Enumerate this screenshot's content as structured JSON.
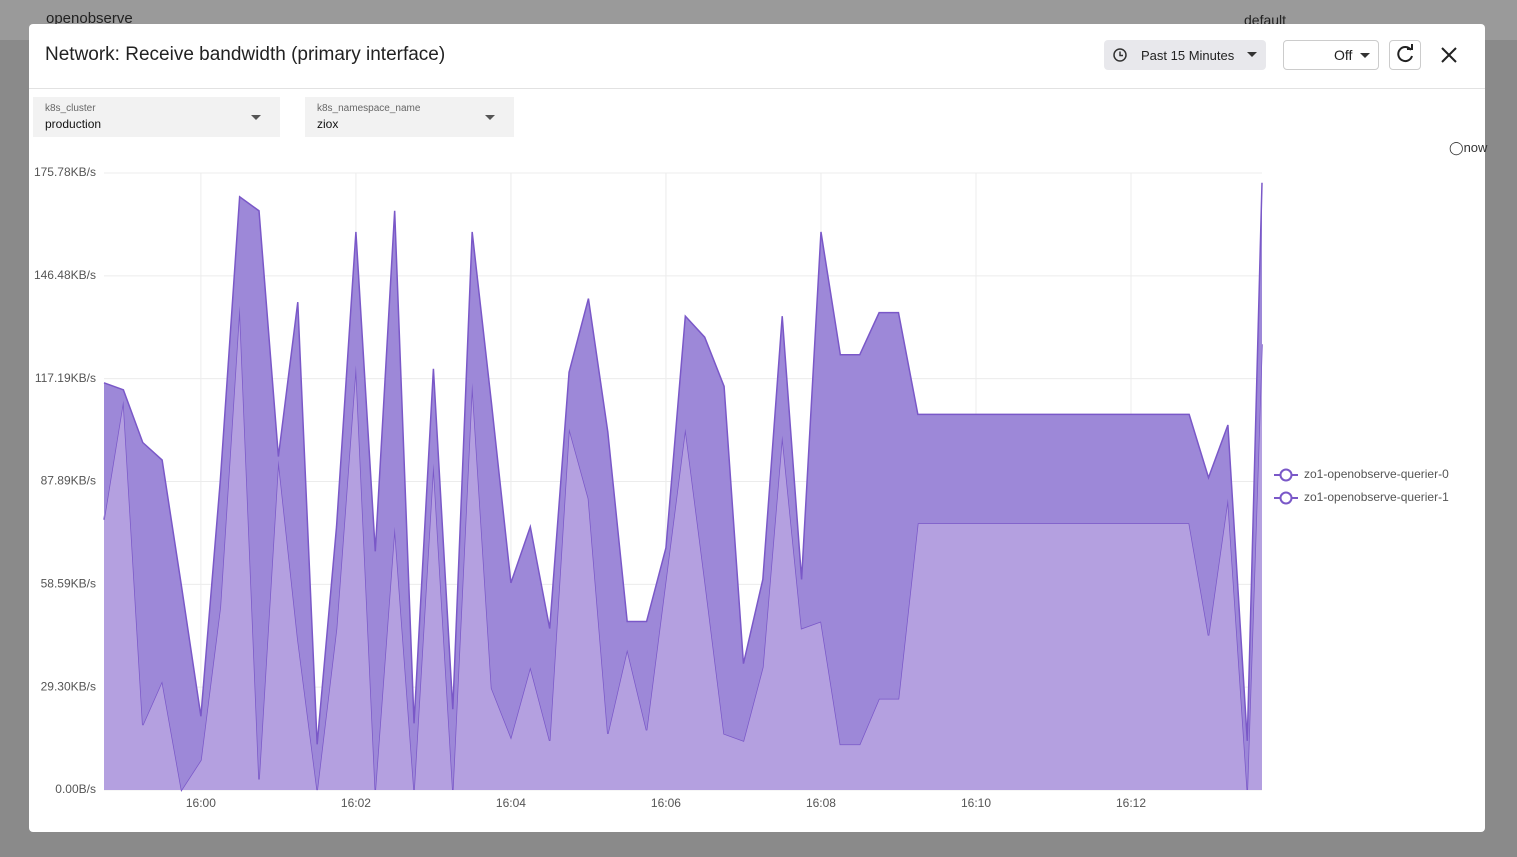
{
  "background": {
    "brand": "openobserve",
    "org": "default"
  },
  "header": {
    "title": "Network: Receive bandwidth (primary interface)",
    "time_range": "Past 15 Minutes",
    "refresh": "Off"
  },
  "filters": [
    {
      "label": "k8s_cluster",
      "value": "production"
    },
    {
      "label": "k8s_namespace_name",
      "value": "ziox"
    }
  ],
  "now_label": "now",
  "chart_data": {
    "type": "area",
    "stacked": true,
    "legend": "right",
    "grid": true,
    "x": [
      -1.25,
      -1,
      -0.75,
      -0.5,
      -0.25,
      0,
      0.25,
      0.5,
      0.75,
      1,
      1.25,
      1.5,
      1.75,
      2,
      2.25,
      2.5,
      2.75,
      3,
      3.25,
      3.5,
      3.75,
      4,
      4.25,
      4.5,
      4.75,
      5,
      5.25,
      5.5,
      5.75,
      6,
      6.25,
      6.5,
      6.75,
      7,
      7.25,
      7.5,
      7.75,
      8,
      8.25,
      8.5,
      8.75,
      9,
      9.25,
      12.75,
      13,
      13.25,
      13.5,
      13.69
    ],
    "series": [
      {
        "name": "zo1-openobserve-querier-0",
        "color": "#b4a0e0",
        "values": [
          77,
          111,
          18.5,
          31,
          0,
          8.5,
          52,
          138,
          3,
          94,
          43,
          0,
          46,
          121,
          0,
          75,
          0,
          93,
          0,
          116,
          29,
          15,
          35,
          14,
          103,
          83,
          16,
          40,
          17,
          60,
          103,
          60,
          16,
          14,
          35,
          101,
          46,
          48,
          13,
          13,
          26,
          26,
          76,
          76,
          44,
          83,
          0,
          127
        ]
      },
      {
        "name": "zo1-openobserve-querier-1",
        "color": "#9d88d8",
        "values": [
          39,
          3,
          80.5,
          63,
          58,
          12.5,
          36,
          31,
          162,
          1,
          96,
          13,
          29,
          38,
          68,
          90,
          19,
          27,
          23,
          43,
          81,
          44,
          40,
          32,
          16,
          57,
          86,
          8,
          31,
          9,
          32,
          69,
          99,
          22,
          25,
          34,
          14,
          111,
          111,
          111,
          110,
          110,
          31,
          31,
          45,
          21,
          14,
          46
        ]
      }
    ],
    "xlim": [
      -1.25,
      13.69
    ],
    "xticks": [
      {
        "value": 0,
        "label": "16:00"
      },
      {
        "value": 2,
        "label": "16:02"
      },
      {
        "value": 4,
        "label": "16:04"
      },
      {
        "value": 6,
        "label": "16:06"
      },
      {
        "value": 8,
        "label": "16:08"
      },
      {
        "value": 10,
        "label": "16:10"
      },
      {
        "value": 12,
        "label": "16:12"
      }
    ],
    "ylim": [
      0,
      175.78
    ],
    "yticks": [
      {
        "value": 0,
        "label": "0.00B/s"
      },
      {
        "value": 29.3,
        "label": "29.30KB/s"
      },
      {
        "value": 58.59,
        "label": "58.59KB/s"
      },
      {
        "value": 87.89,
        "label": "87.89KB/s"
      },
      {
        "value": 117.19,
        "label": "117.19KB/s"
      },
      {
        "value": 146.48,
        "label": "146.48KB/s"
      },
      {
        "value": 175.78,
        "label": "175.78KB/s"
      }
    ]
  }
}
